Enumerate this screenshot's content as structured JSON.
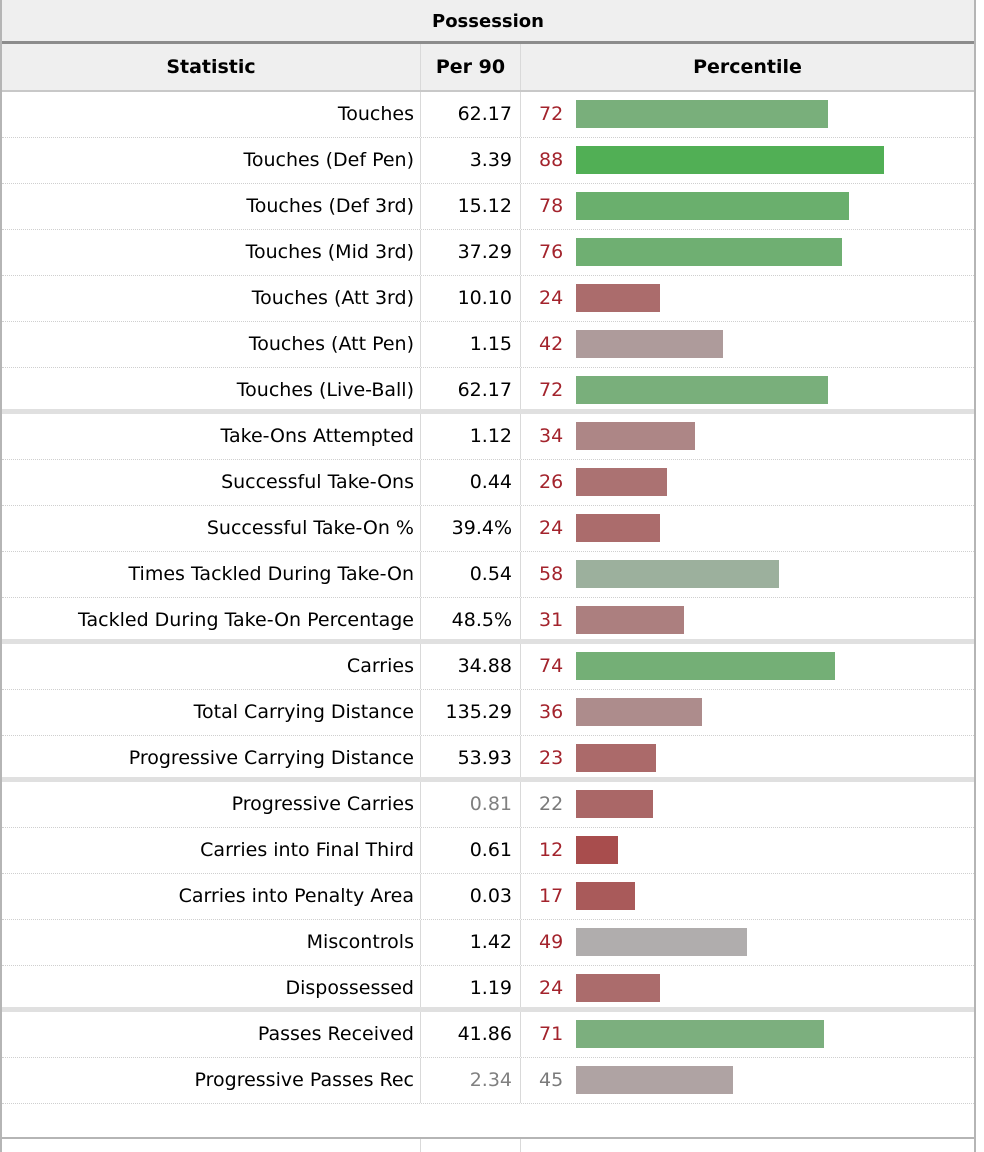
{
  "title": "Possession",
  "headers": {
    "statistic": "Statistic",
    "per90": "Per 90",
    "percentile": "Percentile"
  },
  "colors": {
    "high": "#4caf50",
    "low": "#a84848",
    "neutral": "#b0b0b0"
  },
  "rows": [
    {
      "stat": "Touches",
      "per90": "62.17",
      "percentile": 72,
      "sep": false
    },
    {
      "stat": "Touches (Def Pen)",
      "per90": "3.39",
      "percentile": 88,
      "sep": false
    },
    {
      "stat": "Touches (Def 3rd)",
      "per90": "15.12",
      "percentile": 78,
      "sep": false
    },
    {
      "stat": "Touches (Mid 3rd)",
      "per90": "37.29",
      "percentile": 76,
      "sep": false
    },
    {
      "stat": "Touches (Att 3rd)",
      "per90": "10.10",
      "percentile": 24,
      "sep": false
    },
    {
      "stat": "Touches (Att Pen)",
      "per90": "1.15",
      "percentile": 42,
      "sep": false
    },
    {
      "stat": "Touches (Live-Ball)",
      "per90": "62.17",
      "percentile": 72,
      "sep": true
    },
    {
      "stat": "Take-Ons Attempted",
      "per90": "1.12",
      "percentile": 34,
      "sep": false
    },
    {
      "stat": "Successful Take-Ons",
      "per90": "0.44",
      "percentile": 26,
      "sep": false
    },
    {
      "stat": "Successful Take-On %",
      "per90": "39.4%",
      "percentile": 24,
      "sep": false
    },
    {
      "stat": "Times Tackled During Take-On",
      "per90": "0.54",
      "percentile": 58,
      "sep": false
    },
    {
      "stat": "Tackled During Take-On Percentage",
      "per90": "48.5%",
      "percentile": 31,
      "sep": true
    },
    {
      "stat": "Carries",
      "per90": "34.88",
      "percentile": 74,
      "sep": false
    },
    {
      "stat": "Total Carrying Distance",
      "per90": "135.29",
      "percentile": 36,
      "sep": false
    },
    {
      "stat": "Progressive Carrying Distance",
      "per90": "53.93",
      "percentile": 23,
      "sep": true
    },
    {
      "stat": "Progressive Carries",
      "per90": "0.81",
      "percentile": 22,
      "sep": false,
      "muted": true
    },
    {
      "stat": "Carries into Final Third",
      "per90": "0.61",
      "percentile": 12,
      "sep": false
    },
    {
      "stat": "Carries into Penalty Area",
      "per90": "0.03",
      "percentile": 17,
      "sep": false
    },
    {
      "stat": "Miscontrols",
      "per90": "1.42",
      "percentile": 49,
      "sep": false
    },
    {
      "stat": "Dispossessed",
      "per90": "1.19",
      "percentile": 24,
      "sep": true
    },
    {
      "stat": "Passes Received",
      "per90": "41.86",
      "percentile": 71,
      "sep": false
    },
    {
      "stat": "Progressive Passes Rec",
      "per90": "2.34",
      "percentile": 45,
      "sep": false,
      "muted": true
    }
  ]
}
